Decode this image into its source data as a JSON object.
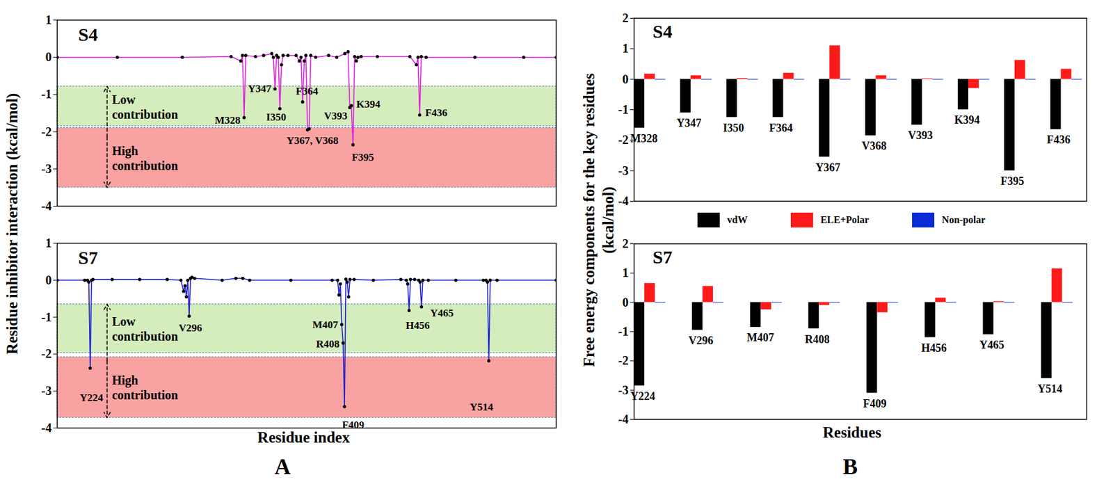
{
  "chart_data": [
    {
      "type": "line",
      "panel": "A",
      "title": "S4",
      "ylabel": "Residue inhibitor interaction (kcal/mol)",
      "x": [
        213,
        250,
        290,
        320,
        326,
        327,
        328,
        329,
        335,
        340,
        345,
        346,
        347,
        348,
        349,
        350,
        351,
        352,
        355,
        360,
        362,
        363,
        364,
        365,
        366,
        367,
        368,
        369,
        372,
        380,
        385,
        390,
        392,
        393,
        394,
        395,
        396,
        397,
        398,
        400,
        410,
        430,
        434,
        435,
        436,
        437,
        440,
        470,
        500,
        520
      ],
      "values": [
        0,
        0,
        0,
        0.02,
        -0.1,
        0.05,
        -1.62,
        0.05,
        0.02,
        0.05,
        0.1,
        0,
        -0.85,
        0.05,
        0,
        -1.38,
        -0.2,
        0.05,
        0.05,
        0.05,
        -0.1,
        0,
        -1.2,
        -0.1,
        0.05,
        -1.95,
        -1.92,
        0.05,
        0,
        0.05,
        0,
        0.1,
        0.15,
        -1.35,
        -1.3,
        -2.35,
        0.02,
        -0.1,
        0,
        0.02,
        0.02,
        0.02,
        -0.2,
        0,
        -1.55,
        0.02,
        0,
        0,
        0,
        0
      ],
      "color": "#e01ee0",
      "marker": "circle",
      "xlim": [
        213,
        520
      ],
      "ylim": [
        -4,
        1
      ],
      "yticks": [
        -4,
        -3,
        -2,
        -1,
        0,
        1
      ],
      "tick_labels": "y",
      "bands": [
        {
          "label": "Low contribution",
          "from": -0.78,
          "to": -1.85,
          "color": "#d5ecbd"
        },
        {
          "label": "High contribution",
          "from": -1.9,
          "to": -3.5,
          "color": "#f8a3a1"
        }
      ],
      "point_labels": [
        {
          "label": "M328",
          "x": 328
        },
        {
          "label": "Y347",
          "x": 347
        },
        {
          "label": "I350",
          "x": 350
        },
        {
          "label": "F364",
          "x": 364
        },
        {
          "label": "Y367, V368",
          "x": 367
        },
        {
          "label": "V393",
          "x": 393
        },
        {
          "label": "K394",
          "x": 394
        },
        {
          "label": "F395",
          "x": 395
        },
        {
          "label": "F436",
          "x": 436
        }
      ]
    },
    {
      "type": "line",
      "title": "S7",
      "xlabel": "Residue index",
      "x": [
        200,
        220,
        222,
        223,
        224,
        225,
        226,
        240,
        260,
        280,
        290,
        292,
        293,
        294,
        295,
        296,
        297,
        298,
        300,
        320,
        330,
        335,
        340,
        370,
        400,
        404,
        405,
        406,
        407,
        408,
        409,
        410,
        411,
        412,
        413,
        416,
        430,
        450,
        454,
        455,
        456,
        457,
        460,
        463,
        464,
        465,
        466,
        470,
        490,
        510,
        512,
        513,
        514,
        515,
        520,
        563
      ],
      "values": [
        0,
        0,
        0,
        -0.05,
        -2.38,
        0,
        0.02,
        0.02,
        0.02,
        0.02,
        0,
        -0.3,
        -0.15,
        -0.45,
        0,
        -0.97,
        0.05,
        0.08,
        0.05,
        0,
        0.05,
        0.05,
        0,
        0,
        0,
        0,
        -0.4,
        -0.1,
        -1.2,
        -1.7,
        -3.42,
        0.03,
        -0.05,
        -0.45,
        0.02,
        0.02,
        0,
        0.02,
        0,
        -0.1,
        -0.82,
        0.02,
        0.02,
        0,
        -0.05,
        -0.72,
        0,
        0,
        0,
        0,
        0,
        -0.05,
        -2.18,
        0,
        0,
        0
      ],
      "color": "#1f1fd6",
      "marker": "circle",
      "xlim": [
        200,
        563
      ],
      "ylim": [
        -4,
        1
      ],
      "yticks": [
        -4,
        -3,
        -2,
        -1,
        0,
        1
      ],
      "tick_labels": "y",
      "bands": [
        {
          "label": "Low contribution",
          "from": -0.65,
          "to": -1.97,
          "color": "#d5ecbd"
        },
        {
          "label": "High contribution",
          "from": -2.08,
          "to": -3.72,
          "color": "#f8a3a1"
        }
      ],
      "point_labels": [
        {
          "label": "Y224",
          "x": 224
        },
        {
          "label": "V296",
          "x": 296
        },
        {
          "label": "M407",
          "x": 407
        },
        {
          "label": "R408",
          "x": 408
        },
        {
          "label": "F409",
          "x": 409
        },
        {
          "label": "H456",
          "x": 456
        },
        {
          "label": "Y465",
          "x": 465
        },
        {
          "label": "Y514",
          "x": 514
        }
      ]
    },
    {
      "type": "bar",
      "panel": "B",
      "title": "S4",
      "ylabel": "Free energy components for the key residues (kcal/mol)",
      "categories": [
        "M328",
        "Y347",
        "I350",
        "F364",
        "Y367",
        "V368",
        "V393",
        "K394",
        "F395",
        "F436"
      ],
      "series": [
        {
          "name": "vdW",
          "color": "#000000",
          "values": [
            -1.6,
            -1.1,
            -1.25,
            -1.25,
            -2.55,
            -1.85,
            -1.5,
            -1.0,
            -3.0,
            -1.65
          ]
        },
        {
          "name": "ELE+Polar",
          "color": "#ff1a1a",
          "values": [
            0.17,
            0.12,
            0.03,
            0.2,
            1.1,
            0.12,
            0.02,
            -0.3,
            0.62,
            0.33
          ]
        },
        {
          "name": "Non-polar",
          "color": "#0a2bd6",
          "values": [
            -0.02,
            -0.02,
            -0.02,
            -0.02,
            -0.02,
            -0.02,
            -0.02,
            -0.02,
            -0.02,
            -0.02
          ]
        }
      ],
      "ylim": [
        -4,
        2
      ],
      "yticks": [
        -4,
        -3,
        -2,
        -1,
        0,
        1,
        2
      ],
      "tick_labels": "y",
      "legend": "bottom"
    },
    {
      "type": "bar",
      "title": "S7",
      "xlabel": "Residues",
      "categories": [
        "Y224",
        "V296",
        "M407",
        "R408",
        "F409",
        "H456",
        "Y465",
        "Y514"
      ],
      "series": [
        {
          "name": "vdW",
          "color": "#000000",
          "values": [
            -2.85,
            -0.95,
            -0.85,
            -0.9,
            -3.1,
            -1.2,
            -1.1,
            -2.6
          ]
        },
        {
          "name": "ELE+Polar",
          "color": "#ff1a1a",
          "values": [
            0.65,
            0.55,
            -0.25,
            -0.1,
            -0.35,
            0.15,
            0.03,
            1.15
          ]
        },
        {
          "name": "Non-polar",
          "color": "#0a2bd6",
          "values": [
            -0.02,
            -0.02,
            -0.02,
            -0.02,
            -0.02,
            -0.02,
            -0.02,
            -0.02
          ]
        }
      ],
      "ylim": [
        -4,
        2
      ],
      "yticks": [
        -4,
        -3,
        -2,
        -1,
        0,
        1,
        2
      ],
      "tick_labels": "y"
    }
  ]
}
